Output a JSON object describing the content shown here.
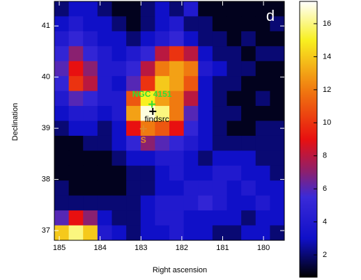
{
  "chart_data": {
    "type": "heatmap",
    "x_label": "Right ascension",
    "y_label": "Declination",
    "panel_label": "d",
    "xlim": [
      185.12,
      179.49
    ],
    "ylim": [
      36.81,
      41.48
    ],
    "xticks": [
      185,
      184,
      183,
      182,
      181,
      180
    ],
    "yticks": [
      37,
      38,
      39,
      40,
      41
    ],
    "zlim": [
      0.65,
      17.35
    ],
    "colorbar_ticks": [
      2,
      4,
      6,
      8,
      10,
      12,
      14,
      16
    ],
    "colormap": [
      {
        "value": 0.65,
        "color": "#000000"
      },
      {
        "value": 3,
        "color": "#1010c8"
      },
      {
        "value": 5.5,
        "color": "#3a2ad8"
      },
      {
        "value": 7,
        "color": "#8a2070"
      },
      {
        "value": 9,
        "color": "#e81010"
      },
      {
        "value": 12,
        "color": "#f07a10"
      },
      {
        "value": 15,
        "color": "#f8f020"
      },
      {
        "value": 17.35,
        "color": "#ffffff"
      }
    ],
    "values": [
      [
        2,
        3,
        3,
        2,
        1,
        1,
        2,
        3,
        2,
        4,
        1,
        1,
        1,
        1,
        1,
        1
      ],
      [
        3,
        4,
        3,
        3,
        2,
        1,
        2,
        3,
        4,
        2,
        2,
        1,
        1,
        1,
        1,
        2
      ],
      [
        4,
        5,
        4,
        3,
        3,
        2,
        3,
        4,
        5,
        3,
        2,
        2,
        1,
        2,
        1,
        1
      ],
      [
        5,
        7,
        5,
        4,
        3,
        4,
        5,
        8,
        10,
        8,
        3,
        2,
        2,
        1,
        2,
        2
      ],
      [
        6,
        9,
        7,
        4,
        4,
        5,
        8,
        12,
        13,
        12,
        4,
        3,
        2,
        2,
        1,
        1
      ],
      [
        5,
        10,
        8,
        4,
        3,
        6,
        10,
        14,
        13,
        11,
        3,
        2,
        2,
        1,
        1,
        1
      ],
      [
        4,
        6,
        5,
        4,
        4,
        11,
        15,
        13,
        12,
        8,
        3,
        2,
        1,
        1,
        2,
        1
      ],
      [
        3,
        4,
        4,
        3,
        4,
        13,
        17,
        16,
        12,
        6,
        3,
        2,
        2,
        1,
        1,
        1
      ],
      [
        2,
        3,
        3,
        2,
        3,
        9,
        12,
        11,
        9,
        5,
        3,
        2,
        1,
        1,
        2,
        2
      ],
      [
        1,
        1,
        2,
        2,
        3,
        5,
        7,
        6,
        5,
        4,
        3,
        2,
        2,
        2,
        2,
        2
      ],
      [
        1,
        1,
        1,
        1,
        2,
        3,
        3,
        4,
        4,
        3,
        2,
        3,
        3,
        3,
        2,
        2
      ],
      [
        1,
        1,
        1,
        1,
        1,
        2,
        2,
        3,
        4,
        3,
        3,
        4,
        4,
        3,
        3,
        2
      ],
      [
        2,
        1,
        1,
        1,
        1,
        2,
        2,
        3,
        3,
        4,
        4,
        4,
        3,
        4,
        3,
        3
      ],
      [
        2,
        2,
        2,
        2,
        2,
        2,
        3,
        4,
        4,
        4,
        5,
        4,
        3,
        3,
        4,
        3
      ],
      [
        6,
        9,
        7,
        3,
        2,
        2,
        3,
        4,
        4,
        3,
        3,
        3,
        3,
        2,
        3,
        3
      ],
      [
        14,
        16,
        14,
        4,
        3,
        2,
        3,
        3,
        4,
        3,
        3,
        2,
        2,
        3,
        3,
        2
      ]
    ],
    "markers": [
      {
        "x": 182.73,
        "y": 39.47,
        "color": "#33dd33"
      },
      {
        "x": 182.71,
        "y": 39.33,
        "color": "#000000"
      },
      {
        "x": 182.94,
        "y": 38.99,
        "color": "#e08a2a"
      }
    ],
    "annotations": [
      {
        "text": "NGC 4151",
        "x": 182.73,
        "y": 39.66,
        "color": "#33dd33"
      },
      {
        "text": "findsrc",
        "x": 182.61,
        "y": 39.17,
        "color": "#000000"
      },
      {
        "text": "S",
        "x": 182.94,
        "y": 38.76,
        "color": "#e08a2a"
      }
    ]
  }
}
